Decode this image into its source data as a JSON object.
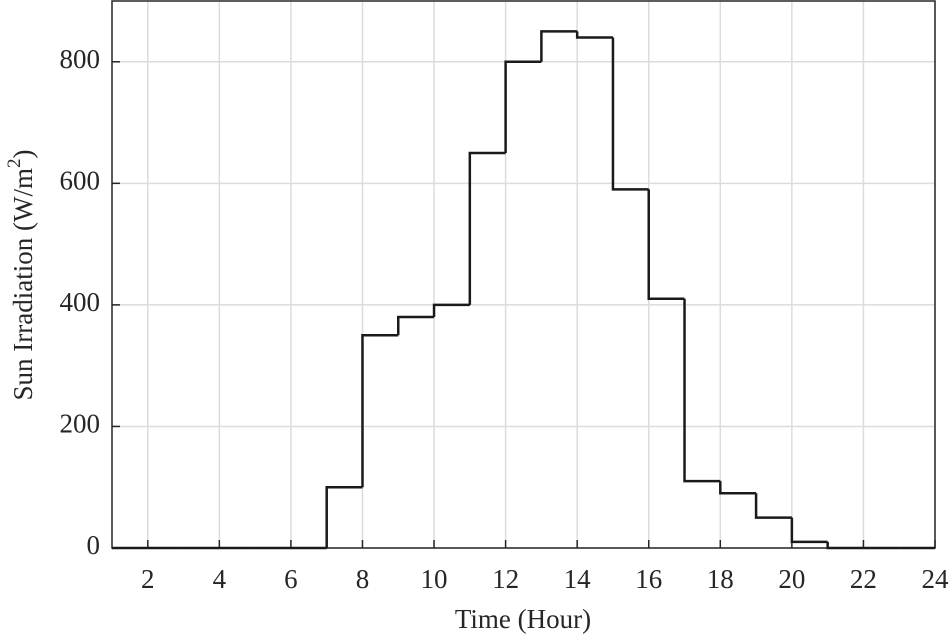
{
  "chart_data": {
    "type": "histogram",
    "xlabel": "Time (Hour)",
    "ylabel": [
      "Sun Irradiation (W/m",
      "2",
      ")"
    ],
    "bins": [
      1,
      2,
      3,
      4,
      5,
      6,
      7,
      8,
      9,
      10,
      11,
      12,
      13,
      14,
      15,
      16,
      17,
      18,
      19,
      20,
      21,
      22,
      23,
      24
    ],
    "values": [
      0,
      0,
      0,
      0,
      0,
      0,
      100,
      350,
      380,
      400,
      650,
      800,
      850,
      840,
      590,
      410,
      110,
      90,
      50,
      10,
      0,
      0,
      0
    ],
    "color": "#1a1a1a",
    "xlim": [
      1,
      24
    ],
    "xticks": [
      2,
      4,
      6,
      8,
      10,
      12,
      14,
      16,
      18,
      20,
      22,
      24
    ],
    "ylim": [
      0,
      900
    ],
    "yticks": [
      0,
      200,
      400,
      600,
      800
    ],
    "grid": true
  }
}
